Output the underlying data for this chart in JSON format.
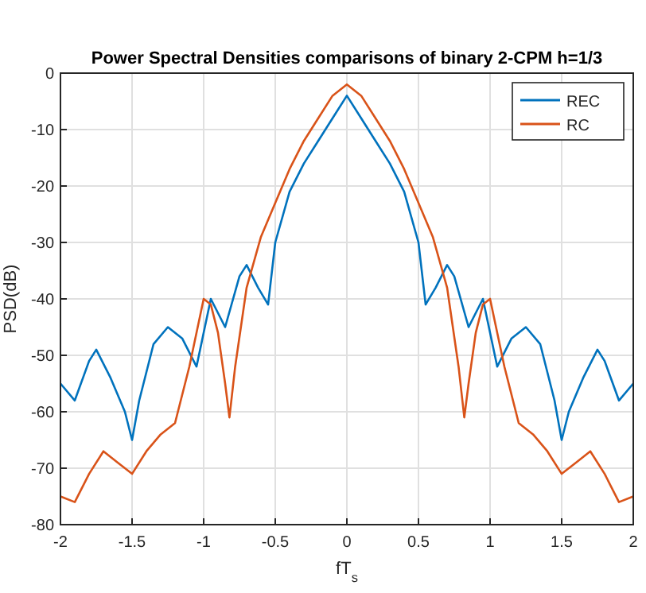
{
  "chart_data": {
    "type": "line",
    "title": "Power Spectral Densities comparisons of binary 2-CPM h=1/3",
    "xlabel": "fT$_{s}$",
    "ylabel": "PSD(dB)",
    "xlim": [
      -2,
      2
    ],
    "ylim": [
      -80,
      0
    ],
    "xticks": [
      -2,
      -1.5,
      -1,
      -0.5,
      0,
      0.5,
      1,
      1.5,
      2
    ],
    "yticks": [
      -80,
      -70,
      -60,
      -50,
      -40,
      -30,
      -20,
      -10,
      0
    ],
    "grid": true,
    "legend": "top right",
    "line_style": "solid",
    "marker": "none",
    "series": [
      {
        "name": "REC",
        "color": "#0072bd",
        "x": [
          -2,
          -1.9,
          -1.8,
          -1.75,
          -1.65,
          -1.55,
          -1.5,
          -1.45,
          -1.35,
          -1.25,
          -1.15,
          -1.05,
          -0.95,
          -0.85,
          -0.75,
          -0.7,
          -0.62,
          -0.55,
          -0.5,
          -0.4,
          -0.3,
          -0.2,
          -0.1,
          0,
          0.1,
          0.2,
          0.3,
          0.4,
          0.5,
          0.55,
          0.62,
          0.7,
          0.75,
          0.85,
          0.95,
          1.05,
          1.15,
          1.25,
          1.35,
          1.45,
          1.5,
          1.55,
          1.65,
          1.75,
          1.8,
          1.9,
          2
        ],
        "values": [
          -55,
          -58,
          -51,
          -49,
          -54,
          -60,
          -65,
          -58,
          -48,
          -45,
          -47,
          -52,
          -40,
          -45,
          -36,
          -34,
          -38,
          -41,
          -30,
          -21,
          -16,
          -12,
          -8,
          -4,
          -8,
          -12,
          -16,
          -21,
          -30,
          -41,
          -38,
          -34,
          -36,
          -45,
          -40,
          -52,
          -47,
          -45,
          -48,
          -58,
          -65,
          -60,
          -54,
          -49,
          -51,
          -58,
          -55
        ]
      },
      {
        "name": "RC",
        "color": "#d95319",
        "x": [
          -2,
          -1.9,
          -1.8,
          -1.7,
          -1.6,
          -1.5,
          -1.4,
          -1.3,
          -1.2,
          -1.1,
          -1,
          -0.95,
          -0.9,
          -0.85,
          -0.82,
          -0.78,
          -0.7,
          -0.6,
          -0.5,
          -0.4,
          -0.3,
          -0.2,
          -0.1,
          0,
          0.1,
          0.2,
          0.3,
          0.4,
          0.5,
          0.6,
          0.7,
          0.78,
          0.82,
          0.85,
          0.9,
          0.95,
          1,
          1.1,
          1.2,
          1.3,
          1.4,
          1.5,
          1.6,
          1.7,
          1.8,
          1.9,
          2
        ],
        "values": [
          -75,
          -76,
          -71,
          -67,
          -69,
          -71,
          -67,
          -64,
          -62,
          -52,
          -40,
          -41,
          -46,
          -55,
          -61,
          -52,
          -38,
          -29,
          -23,
          -17,
          -12,
          -8,
          -4,
          -2,
          -4,
          -8,
          -12,
          -17,
          -23,
          -29,
          -38,
          -52,
          -61,
          -55,
          -46,
          -41,
          -40,
          -52,
          -62,
          -64,
          -67,
          -71,
          -69,
          -67,
          -71,
          -76,
          -75
        ]
      }
    ]
  }
}
